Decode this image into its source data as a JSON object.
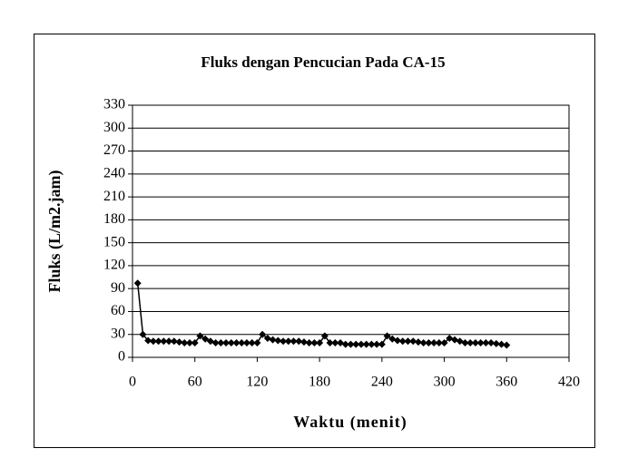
{
  "chart_data": {
    "type": "line",
    "title": "Fluks dengan Pencucian Pada CA-15",
    "x_label": "Waktu (menit)",
    "y_label": "Fluks (L/m2.jam)",
    "x": [
      5,
      10,
      15,
      20,
      25,
      30,
      35,
      40,
      45,
      50,
      55,
      60,
      65,
      70,
      75,
      80,
      85,
      90,
      95,
      100,
      105,
      110,
      115,
      120,
      125,
      130,
      135,
      140,
      145,
      150,
      155,
      160,
      165,
      170,
      175,
      180,
      185,
      190,
      195,
      200,
      205,
      210,
      215,
      220,
      225,
      230,
      235,
      240,
      245,
      250,
      255,
      260,
      265,
      270,
      275,
      280,
      285,
      290,
      295,
      300,
      305,
      310,
      315,
      320,
      325,
      330,
      335,
      340,
      345,
      350,
      355,
      360
    ],
    "values": [
      97,
      30,
      22,
      21,
      21,
      21,
      21,
      21,
      20,
      19,
      19,
      19,
      28,
      24,
      21,
      19,
      19,
      19,
      19,
      19,
      19,
      19,
      19,
      19,
      30,
      25,
      23,
      22,
      21,
      21,
      21,
      21,
      20,
      19,
      19,
      19,
      28,
      19,
      19,
      19,
      17,
      17,
      17,
      17,
      17,
      17,
      17,
      17,
      28,
      24,
      22,
      21,
      21,
      21,
      20,
      19,
      19,
      19,
      19,
      19,
      25,
      23,
      21,
      19,
      19,
      19,
      19,
      19,
      19,
      18,
      17,
      16
    ],
    "color": "#000000",
    "xlim": [
      0,
      420
    ],
    "xticks": [
      0,
      60,
      120,
      180,
      240,
      300,
      360,
      420
    ],
    "ylim": [
      0,
      330
    ],
    "yticks": [
      0,
      30,
      60,
      90,
      120,
      150,
      180,
      210,
      240,
      270,
      300,
      330
    ],
    "grid": true
  }
}
